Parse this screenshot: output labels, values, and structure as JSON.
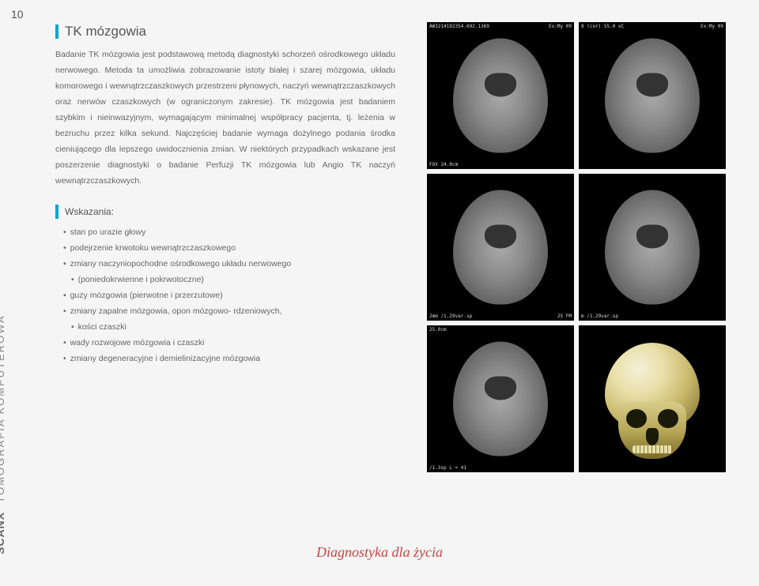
{
  "page_number": "10",
  "sidebar": {
    "brand": "SCANX",
    "label": "TOMOGRAFIA KOMPUTEROWA"
  },
  "title": "TK mózgowia",
  "body_text": "Badanie TK mózgowia jest podstawową metodą diagnostyki schorzeń ośrodkowego układu nerwowego. Metoda ta umożliwia zobrazowanie istoty białej i szarej mózgowia, układu komorowego i wewnątrzczaszkowych przestrzeni płynowych, naczyń wewnątrzczaszkowych oraz nerwów czaszkowych (w ograniczonym zakresie). TK mózgowia jest badaniem szybkim i nieinwazyjnym, wymagającym minimalnej współpracy pacjenta, tj. leżenia w bezruchu przez kilka sekund. Najczęściej badanie wymaga dożylnego podania środka cieniującego dla lepszego uwidocznienia zmian. W niektórych przypadkach wskazane jest poszerzenie diagnostyki o badanie Perfuzji TK mózgowia lub Angio TK naczyń wewnątrzczaszkowych.",
  "subheading": "Wskazania:",
  "indications": [
    "stan po urazie głowy",
    "podejrzenie krwotoku wewnątrzczaszkowego",
    "zmiany naczyniopochodne ośrodkowego układu nerwowego",
    "(poniedokrwienne i pokrwotoczne)",
    "guzy mózgowia (pierwotne i przerzutowe)",
    "zmiany zapalne mózgowia, opon mózgowo- rdzeniowych,",
    "kości czaszki",
    "wady rozwojowe mózgowia i czaszki",
    "zmiany degeneracyjne i demielinizacyjne mózgowia"
  ],
  "ct_images": {
    "top_left": {
      "tl": "AW3214192354.692.1369",
      "tr": "Ex:My 09",
      "bl": "FOV 24.0cm",
      "br": ""
    },
    "top_right": {
      "tl": "8 (cor)\n55.0 oC",
      "tr": "Ex:My 09",
      "bl": "",
      "br": ""
    },
    "mid_left": {
      "tl": "",
      "tr": "",
      "bl": "2mm /1.29var.sp",
      "br": "25 FM"
    },
    "mid_right": {
      "tl": "",
      "tr": "",
      "bl": "m /1.29var.sp",
      "br": ""
    },
    "bot_left": {
      "tl": "25.0cm",
      "tr": "",
      "bl": "/1.3sp\nL = 41",
      "br": ""
    }
  },
  "tagline": "Diagnostyka dla życia",
  "colors": {
    "accent": "#00a7cf",
    "text": "#666666",
    "heading": "#555555",
    "background": "#f5f5f5",
    "ct_bg": "#000000",
    "tagline": "#c44444"
  }
}
